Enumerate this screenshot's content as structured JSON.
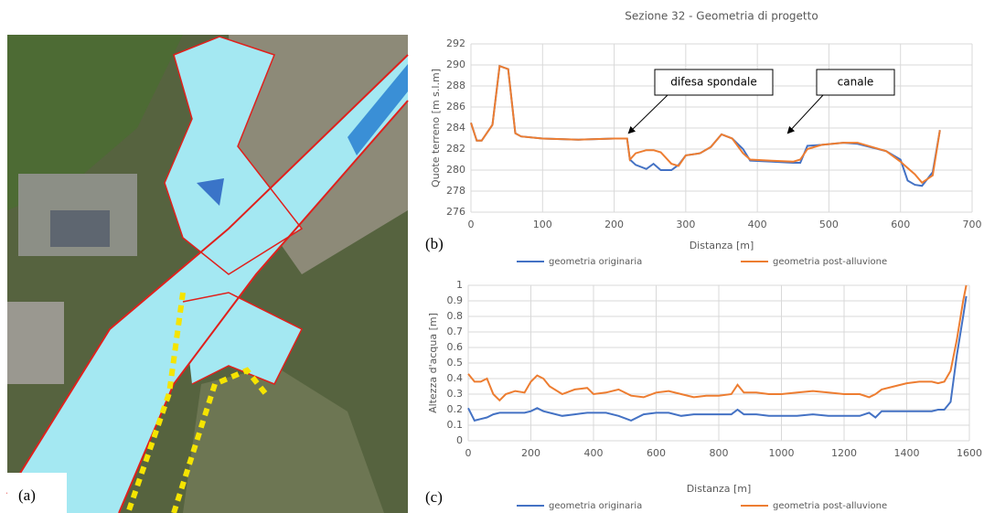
{
  "map_label": "(a)",
  "chart_data": [
    {
      "type": "line",
      "panel_label": "(b)",
      "title": "Sezione 32 - Geometria di progetto",
      "xlabel": "Distanza [m]",
      "ylabel": "Quote terreno [m s.l.m]",
      "xlim": [
        0,
        700
      ],
      "xticks": [
        0,
        100,
        200,
        300,
        400,
        500,
        600,
        700
      ],
      "ylim": [
        276,
        292
      ],
      "yticks": [
        276,
        278,
        280,
        282,
        284,
        286,
        288,
        290,
        292
      ],
      "grid": true,
      "legend": "bottom",
      "x": [
        0,
        8,
        15,
        30,
        40,
        52,
        62,
        70,
        100,
        150,
        200,
        218,
        222,
        230,
        245,
        255,
        265,
        280,
        290,
        300,
        320,
        335,
        350,
        365,
        380,
        390,
        420,
        450,
        460,
        470,
        490,
        520,
        540,
        580,
        600,
        610,
        620,
        630,
        645,
        655
      ],
      "series": [
        {
          "name": "geometria originaria",
          "color": "#4472c4",
          "values": [
            284.5,
            282.8,
            282.8,
            284.3,
            289.9,
            289.6,
            283.5,
            283.2,
            283.0,
            282.9,
            283.0,
            283.0,
            281.0,
            280.5,
            280.1,
            280.6,
            280.0,
            280.0,
            280.5,
            281.4,
            281.6,
            282.2,
            283.4,
            283.0,
            282.0,
            280.9,
            280.8,
            280.7,
            280.7,
            282.3,
            282.4,
            282.6,
            282.5,
            281.8,
            281.0,
            279.0,
            278.6,
            278.5,
            279.8,
            283.8
          ]
        },
        {
          "name": "geometria post-alluvione",
          "color": "#ed7d31",
          "values": [
            284.5,
            282.8,
            282.8,
            284.3,
            289.9,
            289.6,
            283.5,
            283.2,
            283.0,
            282.9,
            283.0,
            283.0,
            281.0,
            281.6,
            281.9,
            281.9,
            281.7,
            280.6,
            280.4,
            281.4,
            281.6,
            282.2,
            283.4,
            283.0,
            281.6,
            281.0,
            280.9,
            280.8,
            281.0,
            282.0,
            282.4,
            282.6,
            282.6,
            281.8,
            280.8,
            280.2,
            279.6,
            278.8,
            279.5,
            283.8
          ]
        }
      ],
      "annotations": [
        {
          "text": "difesa spondale"
        },
        {
          "text": "canale"
        }
      ]
    },
    {
      "type": "line",
      "panel_label": "(c)",
      "xlabel": "Distanza [m]",
      "ylabel": "Altezza d'acqua [m]",
      "xlim": [
        0,
        1600
      ],
      "xticks": [
        0,
        200,
        400,
        600,
        800,
        1000,
        1200,
        1400,
        1600
      ],
      "ylim": [
        0,
        1
      ],
      "yticks": [
        0,
        0.1,
        0.2,
        0.3,
        0.4,
        0.5,
        0.6,
        0.7,
        0.8,
        0.9,
        1
      ],
      "grid": true,
      "legend": "bottom",
      "x": [
        0,
        20,
        40,
        60,
        80,
        100,
        120,
        150,
        180,
        200,
        220,
        240,
        260,
        300,
        340,
        380,
        400,
        440,
        480,
        520,
        560,
        600,
        640,
        680,
        720,
        760,
        800,
        840,
        860,
        880,
        920,
        960,
        1000,
        1050,
        1100,
        1150,
        1200,
        1250,
        1280,
        1300,
        1320,
        1360,
        1400,
        1440,
        1480,
        1500,
        1520,
        1540,
        1560,
        1580,
        1590
      ],
      "series": [
        {
          "name": "geometria originaria",
          "color": "#4472c4",
          "values": [
            0.21,
            0.13,
            0.14,
            0.15,
            0.17,
            0.18,
            0.18,
            0.18,
            0.18,
            0.19,
            0.21,
            0.19,
            0.18,
            0.16,
            0.17,
            0.18,
            0.18,
            0.18,
            0.16,
            0.13,
            0.17,
            0.18,
            0.18,
            0.16,
            0.17,
            0.17,
            0.17,
            0.17,
            0.2,
            0.17,
            0.17,
            0.16,
            0.16,
            0.16,
            0.17,
            0.16,
            0.16,
            0.16,
            0.18,
            0.15,
            0.19,
            0.19,
            0.19,
            0.19,
            0.19,
            0.2,
            0.2,
            0.25,
            0.55,
            0.8,
            0.93
          ]
        },
        {
          "name": "geometria post-alluvione",
          "color": "#ed7d31",
          "values": [
            0.43,
            0.38,
            0.38,
            0.4,
            0.3,
            0.26,
            0.3,
            0.32,
            0.31,
            0.38,
            0.42,
            0.4,
            0.35,
            0.3,
            0.33,
            0.34,
            0.3,
            0.31,
            0.33,
            0.29,
            0.28,
            0.31,
            0.32,
            0.3,
            0.28,
            0.29,
            0.29,
            0.3,
            0.36,
            0.31,
            0.31,
            0.3,
            0.3,
            0.31,
            0.32,
            0.31,
            0.3,
            0.3,
            0.28,
            0.3,
            0.33,
            0.35,
            0.37,
            0.38,
            0.38,
            0.37,
            0.38,
            0.45,
            0.65,
            0.9,
            1.0
          ]
        }
      ]
    }
  ]
}
